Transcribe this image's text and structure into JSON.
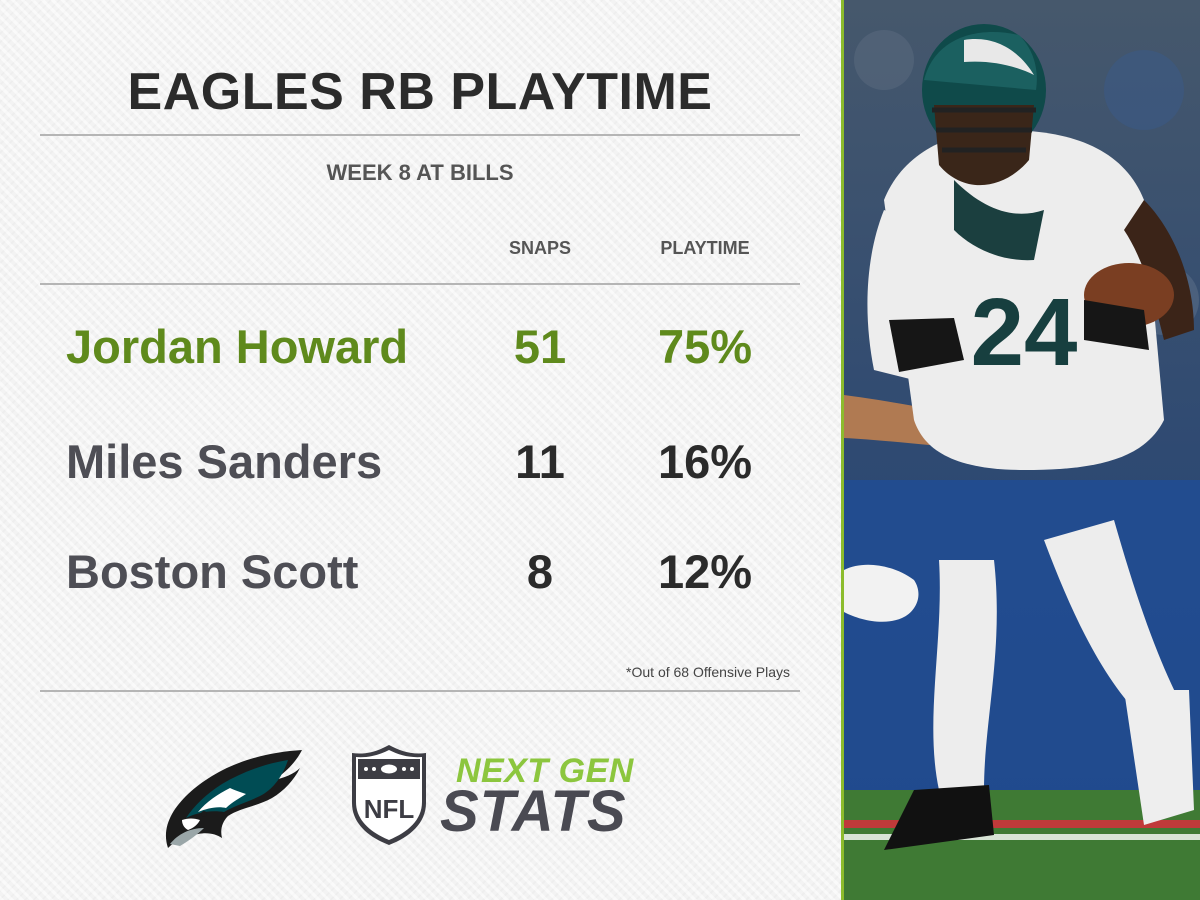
{
  "graphic": {
    "title": "EAGLES RB PLAYTIME",
    "subtitle": "WEEK 8 AT BILLS",
    "columns": {
      "snaps": "SNAPS",
      "playtime": "PLAYTIME"
    },
    "rows": [
      {
        "player": "Jordan Howard",
        "snaps": "51",
        "playtime": "75%",
        "highlight": true
      },
      {
        "player": "Miles Sanders",
        "snaps": "11",
        "playtime": "16%",
        "highlight": false
      },
      {
        "player": "Boston Scott",
        "snaps": "8",
        "playtime": "12%",
        "highlight": false
      }
    ],
    "footnote": "*Out of 68 Offensive Plays"
  },
  "branding": {
    "team_logo": "eagles-logo",
    "league_logo": "nfl-shield-logo",
    "league_logo_text": "NFL",
    "ngs_line1": "NEXT GEN",
    "ngs_line2": "STATS"
  },
  "photo": {
    "subject": "player-photo",
    "jersey_number": "24"
  },
  "colors": {
    "highlight_green": "#5f8a1c",
    "accent_green": "#8cc63e",
    "text_dark": "#2b2b2b",
    "text_gray": "#4e4e55",
    "eagles_green": "#004c54"
  }
}
